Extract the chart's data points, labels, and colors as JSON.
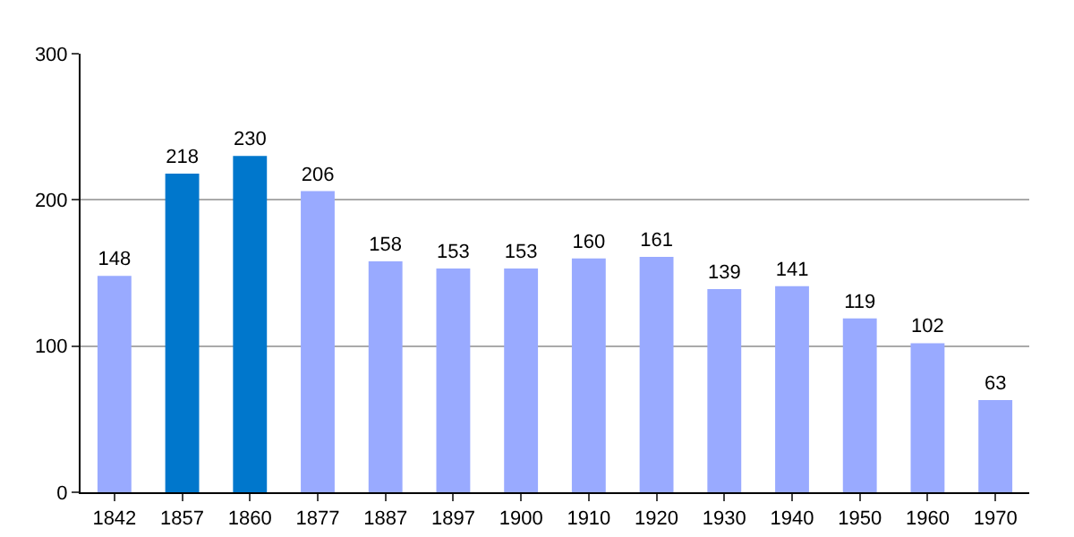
{
  "chart_data": {
    "type": "bar",
    "categories": [
      "1842",
      "1857",
      "1860",
      "1877",
      "1887",
      "1897",
      "1900",
      "1910",
      "1920",
      "1930",
      "1940",
      "1950",
      "1960",
      "1970"
    ],
    "values": [
      148,
      218,
      230,
      206,
      158,
      153,
      153,
      160,
      161,
      139,
      141,
      119,
      102,
      63
    ],
    "colors": [
      "#99aaff",
      "#0077cc",
      "#0077cc",
      "#99aaff",
      "#99aaff",
      "#99aaff",
      "#99aaff",
      "#99aaff",
      "#99aaff",
      "#99aaff",
      "#99aaff",
      "#99aaff",
      "#99aaff",
      "#99aaff"
    ],
    "ylim": [
      0,
      300
    ],
    "yticks": [
      0,
      100,
      200,
      300
    ],
    "grid": "y",
    "data_labels": true
  }
}
